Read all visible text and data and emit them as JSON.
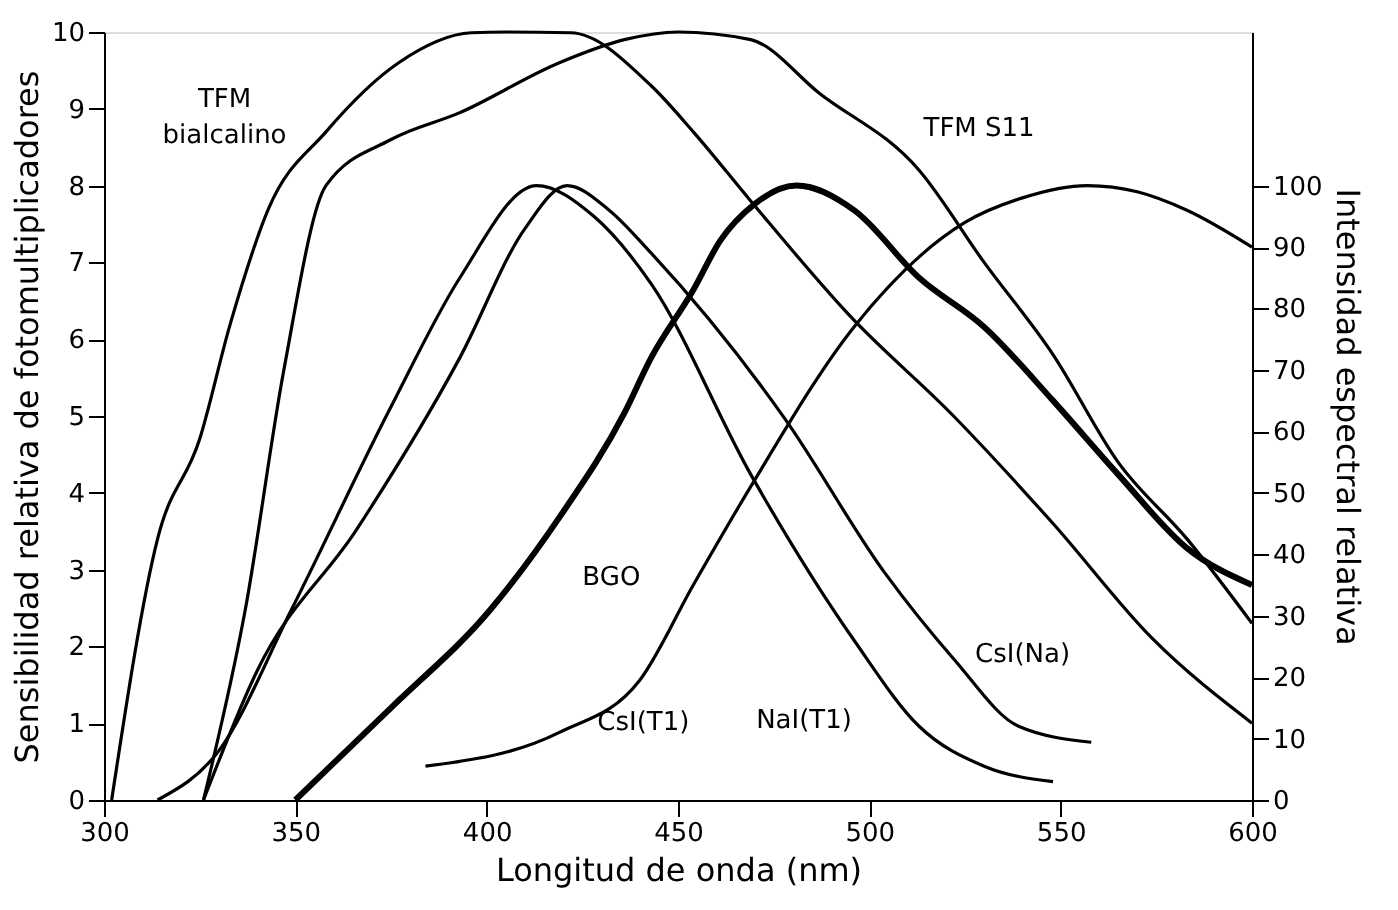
{
  "chart_data": {
    "type": "line",
    "xlabel": "Longitud de onda (nm)",
    "ylabel": "Sensibilidad relativa de fotomultiplicadores",
    "y2label": "Intensidad espectral relativa",
    "xlim": [
      300,
      600
    ],
    "xticks": [
      300,
      350,
      400,
      450,
      500,
      550,
      600
    ],
    "ylim": [
      0,
      10
    ],
    "yticks": [
      0,
      1,
      2,
      3,
      4,
      5,
      6,
      7,
      8,
      9,
      10
    ],
    "y2lim": [
      0,
      125
    ],
    "y2ticks": [
      0,
      10,
      20,
      30,
      40,
      50,
      60,
      70,
      80,
      90,
      100
    ],
    "grid": false,
    "legend": false,
    "marker": "none",
    "line_style": "solid",
    "series": [
      {
        "name": "TFM bialcalino",
        "color": "#000000",
        "x": [
          302,
          314,
          325,
          333,
          343,
          358,
          377,
          396,
          405,
          422,
          443,
          454,
          469,
          495,
          522,
          548,
          574,
          600
        ],
        "values": [
          0,
          3.4,
          4.7,
          6.2,
          7.7,
          8.7,
          9.6,
          9.99,
          10,
          9.99,
          9.3,
          8.7,
          7.8,
          6.3,
          5.0,
          3.6,
          2.1,
          1.0
        ]
      },
      {
        "name": "TFM S11",
        "color": "#000000",
        "x": [
          326,
          337,
          347,
          358,
          375,
          393,
          419,
          436,
          450,
          469,
          487,
          513,
          530,
          548,
          565,
          583,
          600
        ],
        "values": [
          0,
          2.5,
          5.6,
          8.0,
          8.6,
          8.95,
          9.6,
          9.9,
          10,
          9.9,
          9.2,
          8.2,
          7.0,
          5.8,
          4.4,
          3.4,
          2.3
        ]
      },
      {
        "name": "BGO",
        "color": "#000000",
        "axis": "y2",
        "x": [
          350,
          375,
          401,
          419,
          436,
          443,
          454,
          461,
          470,
          481,
          496,
          513,
          530,
          548,
          565,
          583,
          600
        ],
        "values": [
          0,
          15,
          31,
          46,
          63,
          72,
          83,
          91,
          97,
          100,
          96,
          85,
          77,
          65,
          53,
          41,
          35
        ]
      },
      {
        "name": "CsI(T1)",
        "color": "#000000",
        "axis": "y2",
        "x": [
          384,
          419,
          440,
          454,
          469,
          496,
          525,
          540,
          557,
          570,
          583,
          600
        ],
        "values": [
          5.5,
          11,
          19.5,
          35,
          51,
          77,
          94,
          98,
          100,
          99,
          96,
          90
        ]
      },
      {
        "name": "NaI(T1)",
        "color": "#000000",
        "axis": "y2",
        "x": [
          314,
          330,
          349,
          375,
          393,
          413,
          428,
          443,
          469,
          496,
          513,
          530,
          548
        ],
        "values": [
          0,
          8,
          31,
          64,
          85,
          100,
          95,
          84,
          53,
          26,
          12,
          5.5,
          3
        ]
      },
      {
        "name": "CsI(Na)",
        "color": "#000000",
        "axis": "y2",
        "x": [
          326,
          340,
          366,
          393,
          410,
          421,
          432,
          443,
          478,
          504,
          522,
          539,
          558
        ],
        "values": [
          0,
          21,
          44,
          72,
          93,
          100,
          96,
          89,
          62,
          37,
          23,
          12,
          9.4
        ]
      }
    ]
  }
}
